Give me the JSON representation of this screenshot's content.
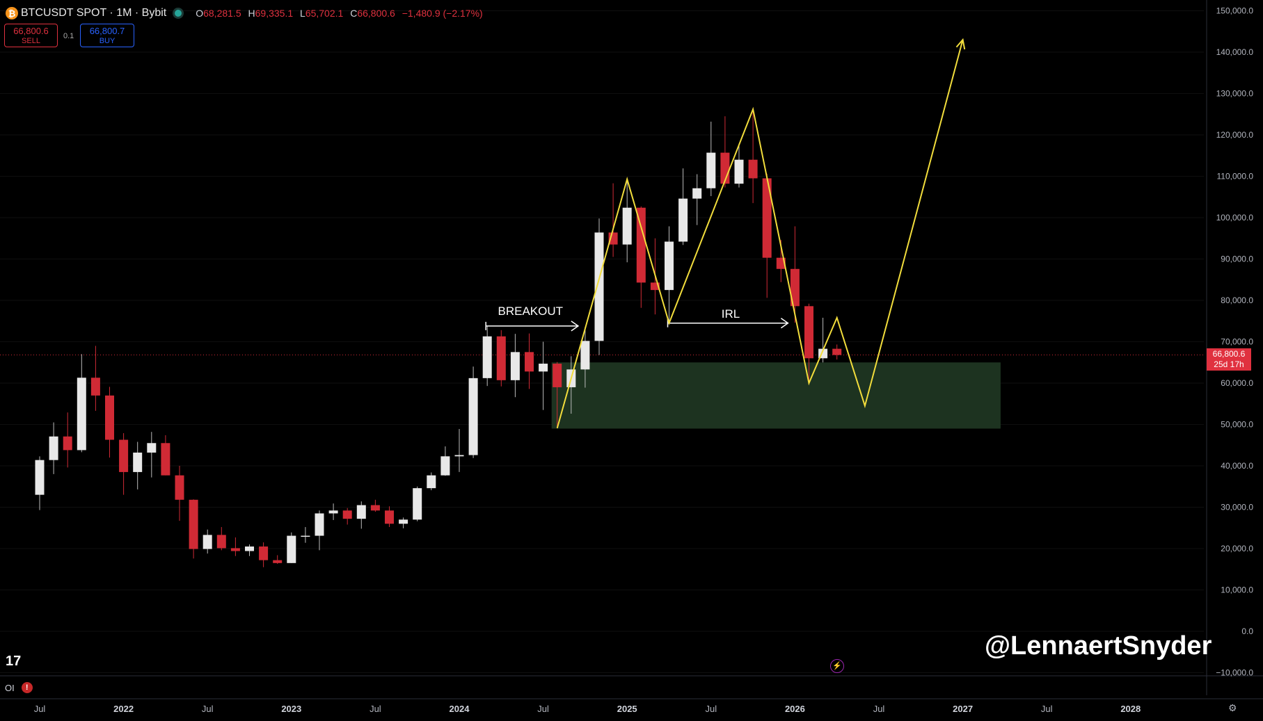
{
  "header": {
    "symbol": "BTCUSDT SPOT · 1M · Bybit",
    "open_key": "O",
    "open": "68,281.5",
    "high_key": "H",
    "high": "69,335.1",
    "low_key": "L",
    "low": "65,702.1",
    "close_key": "C",
    "close": "66,800.6",
    "change": "−1,480.9 (−2.17%)"
  },
  "trade": {
    "sell_price": "66,800.6",
    "sell_label": "SELL",
    "spread": "0.1",
    "buy_price": "66,800.7",
    "buy_label": "BUY"
  },
  "price_tag": {
    "price": "66,800.6",
    "countdown": "25d 17h"
  },
  "oi_label": "OI",
  "oi_warning": "!",
  "watermark": "@LennaertSnyder",
  "tv_logo": "17",
  "icons": [
    "bitcoin-logo-icon",
    "live-dot-icon",
    "warning-icon",
    "lightning-icon",
    "gear-icon",
    "tradingview-logo-icon"
  ],
  "colors": {
    "background": "#000000",
    "bull": "#e8e8e8",
    "bear": "#d02a35",
    "drawing": "#f2dd3c",
    "zone": "#1d3320",
    "price_tag": "#e0313f"
  },
  "chart_data": {
    "type": "candlestick",
    "title": "",
    "y_axis": {
      "min": -10000,
      "max": 150000,
      "ticks": [
        150000,
        140000,
        130000,
        120000,
        110000,
        100000,
        90000,
        80000,
        70000,
        60000,
        50000,
        40000,
        30000,
        20000,
        10000,
        0,
        -10000
      ],
      "tick_labels": [
        "150,000.0",
        "140,000.0",
        "130,000.0",
        "120,000.0",
        "110,000.0",
        "100,000.0",
        "90,000.0",
        "80,000.0",
        "70,000.0",
        "60,000.0",
        "50,000.0",
        "40,000.0",
        "30,000.0",
        "20,000.0",
        "10,000.0",
        "0.0",
        "−10,000.0"
      ]
    },
    "x_axis": {
      "labels": [
        {
          "date": "2021-07",
          "text": "Jul"
        },
        {
          "date": "2022-01",
          "text": "2022"
        },
        {
          "date": "2022-07",
          "text": "Jul"
        },
        {
          "date": "2023-01",
          "text": "2023"
        },
        {
          "date": "2023-07",
          "text": "Jul"
        },
        {
          "date": "2024-01",
          "text": "2024"
        },
        {
          "date": "2024-07",
          "text": "Jul"
        },
        {
          "date": "2025-01",
          "text": "2025"
        },
        {
          "date": "2025-07",
          "text": "Jul"
        },
        {
          "date": "2026-01",
          "text": "2026"
        },
        {
          "date": "2026-07",
          "text": "Jul"
        },
        {
          "date": "2027-01",
          "text": "2027"
        },
        {
          "date": "2027-07",
          "text": "Jul"
        },
        {
          "date": "2028-01",
          "text": "2028"
        }
      ]
    },
    "current_price": 66800.6,
    "candles": [
      {
        "date": "2021-07",
        "o": 33000,
        "h": 42300,
        "l": 29300,
        "c": 41400
      },
      {
        "date": "2021-08",
        "o": 41400,
        "h": 50500,
        "l": 38000,
        "c": 47100
      },
      {
        "date": "2021-09",
        "o": 47100,
        "h": 52900,
        "l": 39600,
        "c": 43800
      },
      {
        "date": "2021-10",
        "o": 43800,
        "h": 67000,
        "l": 43300,
        "c": 61300
      },
      {
        "date": "2021-11",
        "o": 61300,
        "h": 69000,
        "l": 53300,
        "c": 57000
      },
      {
        "date": "2021-12",
        "o": 57000,
        "h": 59100,
        "l": 42000,
        "c": 46300
      },
      {
        "date": "2022-01",
        "o": 46300,
        "h": 47900,
        "l": 33000,
        "c": 38500
      },
      {
        "date": "2022-02",
        "o": 38500,
        "h": 45800,
        "l": 34300,
        "c": 43200
      },
      {
        "date": "2022-03",
        "o": 43200,
        "h": 48200,
        "l": 37200,
        "c": 45500
      },
      {
        "date": "2022-04",
        "o": 45500,
        "h": 47400,
        "l": 37700,
        "c": 37700
      },
      {
        "date": "2022-05",
        "o": 37700,
        "h": 40000,
        "l": 26700,
        "c": 31800
      },
      {
        "date": "2022-06",
        "o": 31800,
        "h": 31900,
        "l": 17600,
        "c": 19900
      },
      {
        "date": "2022-07",
        "o": 19900,
        "h": 24600,
        "l": 18800,
        "c": 23300
      },
      {
        "date": "2022-08",
        "o": 23300,
        "h": 25200,
        "l": 19600,
        "c": 20100
      },
      {
        "date": "2022-09",
        "o": 20100,
        "h": 22700,
        "l": 18200,
        "c": 19400
      },
      {
        "date": "2022-10",
        "o": 19400,
        "h": 21000,
        "l": 18200,
        "c": 20500
      },
      {
        "date": "2022-11",
        "o": 20500,
        "h": 21500,
        "l": 15500,
        "c": 17200
      },
      {
        "date": "2022-12",
        "o": 17200,
        "h": 18400,
        "l": 16300,
        "c": 16500
      },
      {
        "date": "2023-01",
        "o": 16500,
        "h": 23900,
        "l": 16500,
        "c": 23100
      },
      {
        "date": "2023-02",
        "o": 23100,
        "h": 25200,
        "l": 21400,
        "c": 23100
      },
      {
        "date": "2023-03",
        "o": 23100,
        "h": 29200,
        "l": 19600,
        "c": 28500
      },
      {
        "date": "2023-04",
        "o": 28500,
        "h": 30900,
        "l": 26900,
        "c": 29200
      },
      {
        "date": "2023-05",
        "o": 29200,
        "h": 29800,
        "l": 25800,
        "c": 27200
      },
      {
        "date": "2023-06",
        "o": 27200,
        "h": 31400,
        "l": 24800,
        "c": 30500
      },
      {
        "date": "2023-07",
        "o": 30500,
        "h": 31800,
        "l": 28900,
        "c": 29200
      },
      {
        "date": "2023-08",
        "o": 29200,
        "h": 30200,
        "l": 25200,
        "c": 26000
      },
      {
        "date": "2023-09",
        "o": 26000,
        "h": 27500,
        "l": 24900,
        "c": 27000
      },
      {
        "date": "2023-10",
        "o": 27000,
        "h": 35000,
        "l": 26600,
        "c": 34600
      },
      {
        "date": "2023-11",
        "o": 34600,
        "h": 38400,
        "l": 34100,
        "c": 37700
      },
      {
        "date": "2023-12",
        "o": 37700,
        "h": 44700,
        "l": 37600,
        "c": 42300
      },
      {
        "date": "2024-01",
        "o": 42300,
        "h": 48900,
        "l": 38500,
        "c": 42600
      },
      {
        "date": "2024-02",
        "o": 42600,
        "h": 64000,
        "l": 41900,
        "c": 61200
      },
      {
        "date": "2024-03",
        "o": 61200,
        "h": 73800,
        "l": 59300,
        "c": 71300
      },
      {
        "date": "2024-04",
        "o": 71300,
        "h": 72800,
        "l": 59200,
        "c": 60700
      },
      {
        "date": "2024-05",
        "o": 60700,
        "h": 71900,
        "l": 56600,
        "c": 67500
      },
      {
        "date": "2024-06",
        "o": 67500,
        "h": 72000,
        "l": 58600,
        "c": 62800
      },
      {
        "date": "2024-07",
        "o": 62800,
        "h": 70000,
        "l": 53500,
        "c": 64700
      },
      {
        "date": "2024-08",
        "o": 64700,
        "h": 65100,
        "l": 49100,
        "c": 59000
      },
      {
        "date": "2024-09",
        "o": 59000,
        "h": 66500,
        "l": 52600,
        "c": 63300
      },
      {
        "date": "2024-10",
        "o": 63300,
        "h": 73600,
        "l": 58900,
        "c": 70200
      },
      {
        "date": "2024-11",
        "o": 70200,
        "h": 99800,
        "l": 66800,
        "c": 96400
      },
      {
        "date": "2024-12",
        "o": 96400,
        "h": 108300,
        "l": 90500,
        "c": 93500
      },
      {
        "date": "2025-01",
        "o": 93500,
        "h": 109300,
        "l": 89200,
        "c": 102400
      },
      {
        "date": "2025-02",
        "o": 102400,
        "h": 102700,
        "l": 78200,
        "c": 84300
      },
      {
        "date": "2025-03",
        "o": 84300,
        "h": 95000,
        "l": 76600,
        "c": 82500
      },
      {
        "date": "2025-04",
        "o": 82500,
        "h": 97900,
        "l": 74500,
        "c": 94200
      },
      {
        "date": "2025-05",
        "o": 94200,
        "h": 111900,
        "l": 93400,
        "c": 104600
      },
      {
        "date": "2025-06",
        "o": 104600,
        "h": 110500,
        "l": 98200,
        "c": 107100
      },
      {
        "date": "2025-07",
        "o": 107100,
        "h": 123200,
        "l": 105200,
        "c": 115700
      },
      {
        "date": "2025-08",
        "o": 115700,
        "h": 124500,
        "l": 107300,
        "c": 108200
      },
      {
        "date": "2025-09",
        "o": 108200,
        "h": 117900,
        "l": 107300,
        "c": 114000
      },
      {
        "date": "2025-10",
        "o": 114000,
        "h": 126200,
        "l": 103500,
        "c": 109500
      },
      {
        "date": "2025-11",
        "o": 109500,
        "h": 110600,
        "l": 80600,
        "c": 90300
      },
      {
        "date": "2025-12",
        "o": 90300,
        "h": 94600,
        "l": 84400,
        "c": 87600
      },
      {
        "date": "2026-01",
        "o": 87600,
        "h": 97900,
        "l": 74600,
        "c": 78600
      },
      {
        "date": "2026-02",
        "o": 78600,
        "h": 79200,
        "l": 60000,
        "c": 66000
      },
      {
        "date": "2026-03",
        "o": 66000,
        "h": 75800,
        "l": 65000,
        "c": 68300
      },
      {
        "date": "2026-04",
        "o": 68300,
        "h": 69335,
        "l": 65702,
        "c": 66800
      }
    ],
    "annotations": [
      {
        "type": "text",
        "text": "BREAKOUT",
        "at": {
          "date": "2024-06",
          "price": 76500
        }
      },
      {
        "type": "text",
        "text": "IRL",
        "at": {
          "date": "2025-07",
          "price": 75800
        }
      },
      {
        "type": "arrow",
        "from": {
          "date": "2024-03",
          "price": 73800
        },
        "to": {
          "date": "2024-10",
          "price": 73800
        }
      },
      {
        "type": "arrow",
        "from": {
          "date": "2025-04",
          "price": 74500
        },
        "to": {
          "date": "2026-01",
          "price": 74500
        }
      },
      {
        "type": "zone",
        "from": {
          "date": "2024-08",
          "price": 65000
        },
        "to": {
          "date": "2027-04",
          "price": 49000
        }
      },
      {
        "type": "path",
        "points": [
          {
            "date": "2024-08",
            "price": 49100
          },
          {
            "date": "2025-01",
            "price": 109300
          },
          {
            "date": "2025-04",
            "price": 74500
          },
          {
            "date": "2025-10",
            "price": 126200
          },
          {
            "date": "2026-02",
            "price": 60000
          },
          {
            "date": "2026-04",
            "price": 75800
          },
          {
            "date": "2026-06",
            "price": 54500
          },
          {
            "date": "2027-01",
            "price": 143000
          }
        ]
      }
    ]
  }
}
